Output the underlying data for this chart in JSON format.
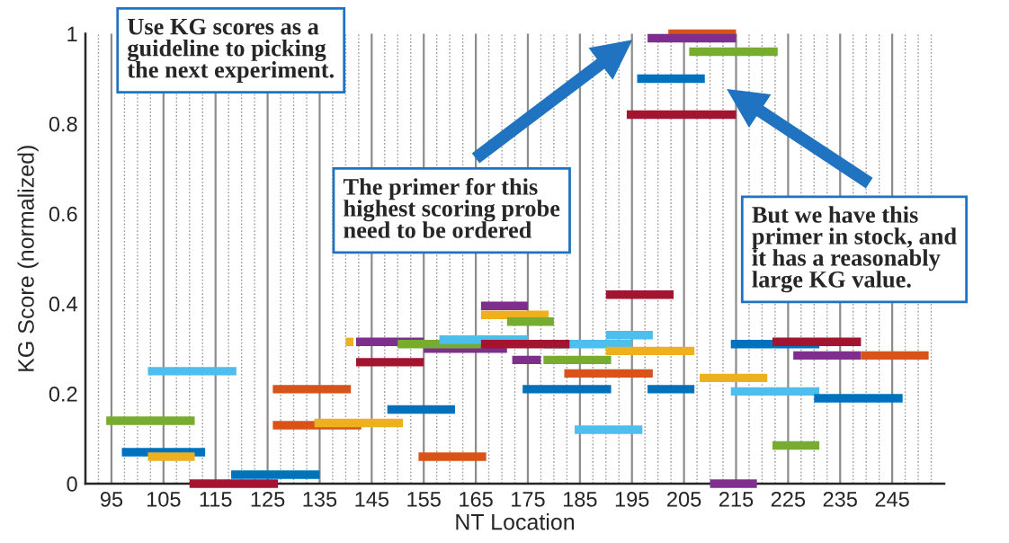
{
  "chart_data": {
    "type": "line",
    "xlabel": "NT Location",
    "ylabel": "KG Score (normalized)",
    "xlim": [
      90,
      255
    ],
    "ylim": [
      0,
      1
    ],
    "xticks": [
      95,
      105,
      115,
      125,
      135,
      145,
      155,
      165,
      175,
      185,
      195,
      205,
      215,
      225,
      235,
      245
    ],
    "yticks": [
      0,
      0.2,
      0.4,
      0.6,
      0.8,
      1
    ],
    "grid": "x",
    "legend": false,
    "marker": "none",
    "line_style": "solid",
    "annotations": [
      "Use KG scores as a\nguideline to picking\nthe next experiment.",
      "The primer for this\nhighest scoring probe\nneed to be ordered",
      "But we have this\nprimer in stock, and\nit has a reasonably\nlarge KG value."
    ],
    "series": [
      {
        "color": "#4dbeee",
        "x": [
          102,
          119
        ],
        "values": [
          0.25,
          0.25
        ]
      },
      {
        "color": "#77ac30",
        "x": [
          94,
          111
        ],
        "values": [
          0.14,
          0.14
        ]
      },
      {
        "color": "#0072bd",
        "x": [
          97,
          113
        ],
        "values": [
          0.07,
          0.07
        ]
      },
      {
        "color": "#edb120",
        "x": [
          102,
          111
        ],
        "values": [
          0.06,
          0.06
        ]
      },
      {
        "color": "#a2142f",
        "x": [
          110,
          127
        ],
        "values": [
          0,
          0
        ]
      },
      {
        "color": "#0072bd",
        "x": [
          118,
          135
        ],
        "values": [
          0.02,
          0.02
        ]
      },
      {
        "color": "#d95319",
        "x": [
          126,
          141
        ],
        "values": [
          0.21,
          0.21
        ]
      },
      {
        "color": "#d95319",
        "x": [
          126,
          143
        ],
        "values": [
          0.13,
          0.13
        ]
      },
      {
        "color": "#edb120",
        "x": [
          134,
          151
        ],
        "values": [
          0.135,
          0.135
        ]
      },
      {
        "color": "#0072bd",
        "x": [
          148,
          161
        ],
        "values": [
          0.165,
          0.165
        ]
      },
      {
        "color": "#edb120",
        "x": [
          140,
          141.5
        ],
        "values": [
          0.315,
          0.315
        ]
      },
      {
        "color": "#7e2f8e",
        "x": [
          155,
          171
        ],
        "values": [
          0.3,
          0.3
        ]
      },
      {
        "color": "#7e2f8e",
        "x": [
          142,
          155
        ],
        "values": [
          0.315,
          0.315
        ]
      },
      {
        "color": "#77ac30",
        "x": [
          150,
          166
        ],
        "values": [
          0.31,
          0.31
        ]
      },
      {
        "color": "#a2142f",
        "x": [
          142,
          155
        ],
        "values": [
          0.27,
          0.27
        ]
      },
      {
        "color": "#7e2f8e",
        "x": [
          166,
          175
        ],
        "values": [
          0.395,
          0.395
        ]
      },
      {
        "color": "#edb120",
        "x": [
          166,
          179
        ],
        "values": [
          0.375,
          0.375
        ]
      },
      {
        "color": "#77ac30",
        "x": [
          171,
          180
        ],
        "values": [
          0.36,
          0.36
        ]
      },
      {
        "color": "#4dbeee",
        "x": [
          158,
          175
        ],
        "values": [
          0.32,
          0.32
        ]
      },
      {
        "color": "#4dbeee",
        "x": [
          178,
          195
        ],
        "values": [
          0.31,
          0.31
        ]
      },
      {
        "color": "#a2142f",
        "x": [
          166,
          183
        ],
        "values": [
          0.31,
          0.31
        ]
      },
      {
        "color": "#4dbeee",
        "x": [
          190,
          199
        ],
        "values": [
          0.33,
          0.33
        ]
      },
      {
        "color": "#edb120",
        "x": [
          190,
          207
        ],
        "values": [
          0.295,
          0.295
        ]
      },
      {
        "color": "#7e2f8e",
        "x": [
          172,
          177.5
        ],
        "values": [
          0.275,
          0.275
        ]
      },
      {
        "color": "#77ac30",
        "x": [
          178,
          191
        ],
        "values": [
          0.275,
          0.275
        ]
      },
      {
        "color": "#d95319",
        "x": [
          182,
          199
        ],
        "values": [
          0.245,
          0.245
        ]
      },
      {
        "color": "#0072bd",
        "x": [
          174,
          191
        ],
        "values": [
          0.21,
          0.21
        ]
      },
      {
        "color": "#0072bd",
        "x": [
          198,
          207
        ],
        "values": [
          0.21,
          0.21
        ]
      },
      {
        "color": "#4dbeee",
        "x": [
          184,
          197
        ],
        "values": [
          0.12,
          0.12
        ]
      },
      {
        "color": "#d95319",
        "x": [
          154,
          167
        ],
        "values": [
          0.06,
          0.06
        ]
      },
      {
        "color": "#a2142f",
        "x": [
          190,
          203
        ],
        "values": [
          0.42,
          0.42
        ]
      },
      {
        "color": "#d95319",
        "x": [
          202,
          215
        ],
        "values": [
          1,
          1
        ]
      },
      {
        "color": "#7e2f8e",
        "x": [
          198,
          215
        ],
        "values": [
          0.99,
          0.99
        ]
      },
      {
        "color": "#77ac30",
        "x": [
          206,
          223
        ],
        "values": [
          0.96,
          0.96
        ]
      },
      {
        "color": "#0072bd",
        "x": [
          196,
          209
        ],
        "values": [
          0.9,
          0.9
        ]
      },
      {
        "color": "#a2142f",
        "x": [
          194,
          215
        ],
        "values": [
          0.82,
          0.82
        ]
      },
      {
        "color": "#0072bd",
        "x": [
          214,
          231
        ],
        "values": [
          0.31,
          0.31
        ]
      },
      {
        "color": "#a2142f",
        "x": [
          222,
          239
        ],
        "values": [
          0.315,
          0.315
        ]
      },
      {
        "color": "#7e2f8e",
        "x": [
          226,
          239
        ],
        "values": [
          0.285,
          0.285
        ]
      },
      {
        "color": "#d95319",
        "x": [
          239,
          252
        ],
        "values": [
          0.285,
          0.285
        ]
      },
      {
        "color": "#edb120",
        "x": [
          208,
          221
        ],
        "values": [
          0.235,
          0.235
        ]
      },
      {
        "color": "#4dbeee",
        "x": [
          214,
          231
        ],
        "values": [
          0.205,
          0.205
        ]
      },
      {
        "color": "#0072bd",
        "x": [
          230,
          247
        ],
        "values": [
          0.19,
          0.19
        ]
      },
      {
        "color": "#77ac30",
        "x": [
          222,
          231
        ],
        "values": [
          0.085,
          0.085
        ]
      },
      {
        "color": "#7e2f8e",
        "x": [
          210,
          219
        ],
        "values": [
          0,
          0
        ]
      }
    ]
  }
}
